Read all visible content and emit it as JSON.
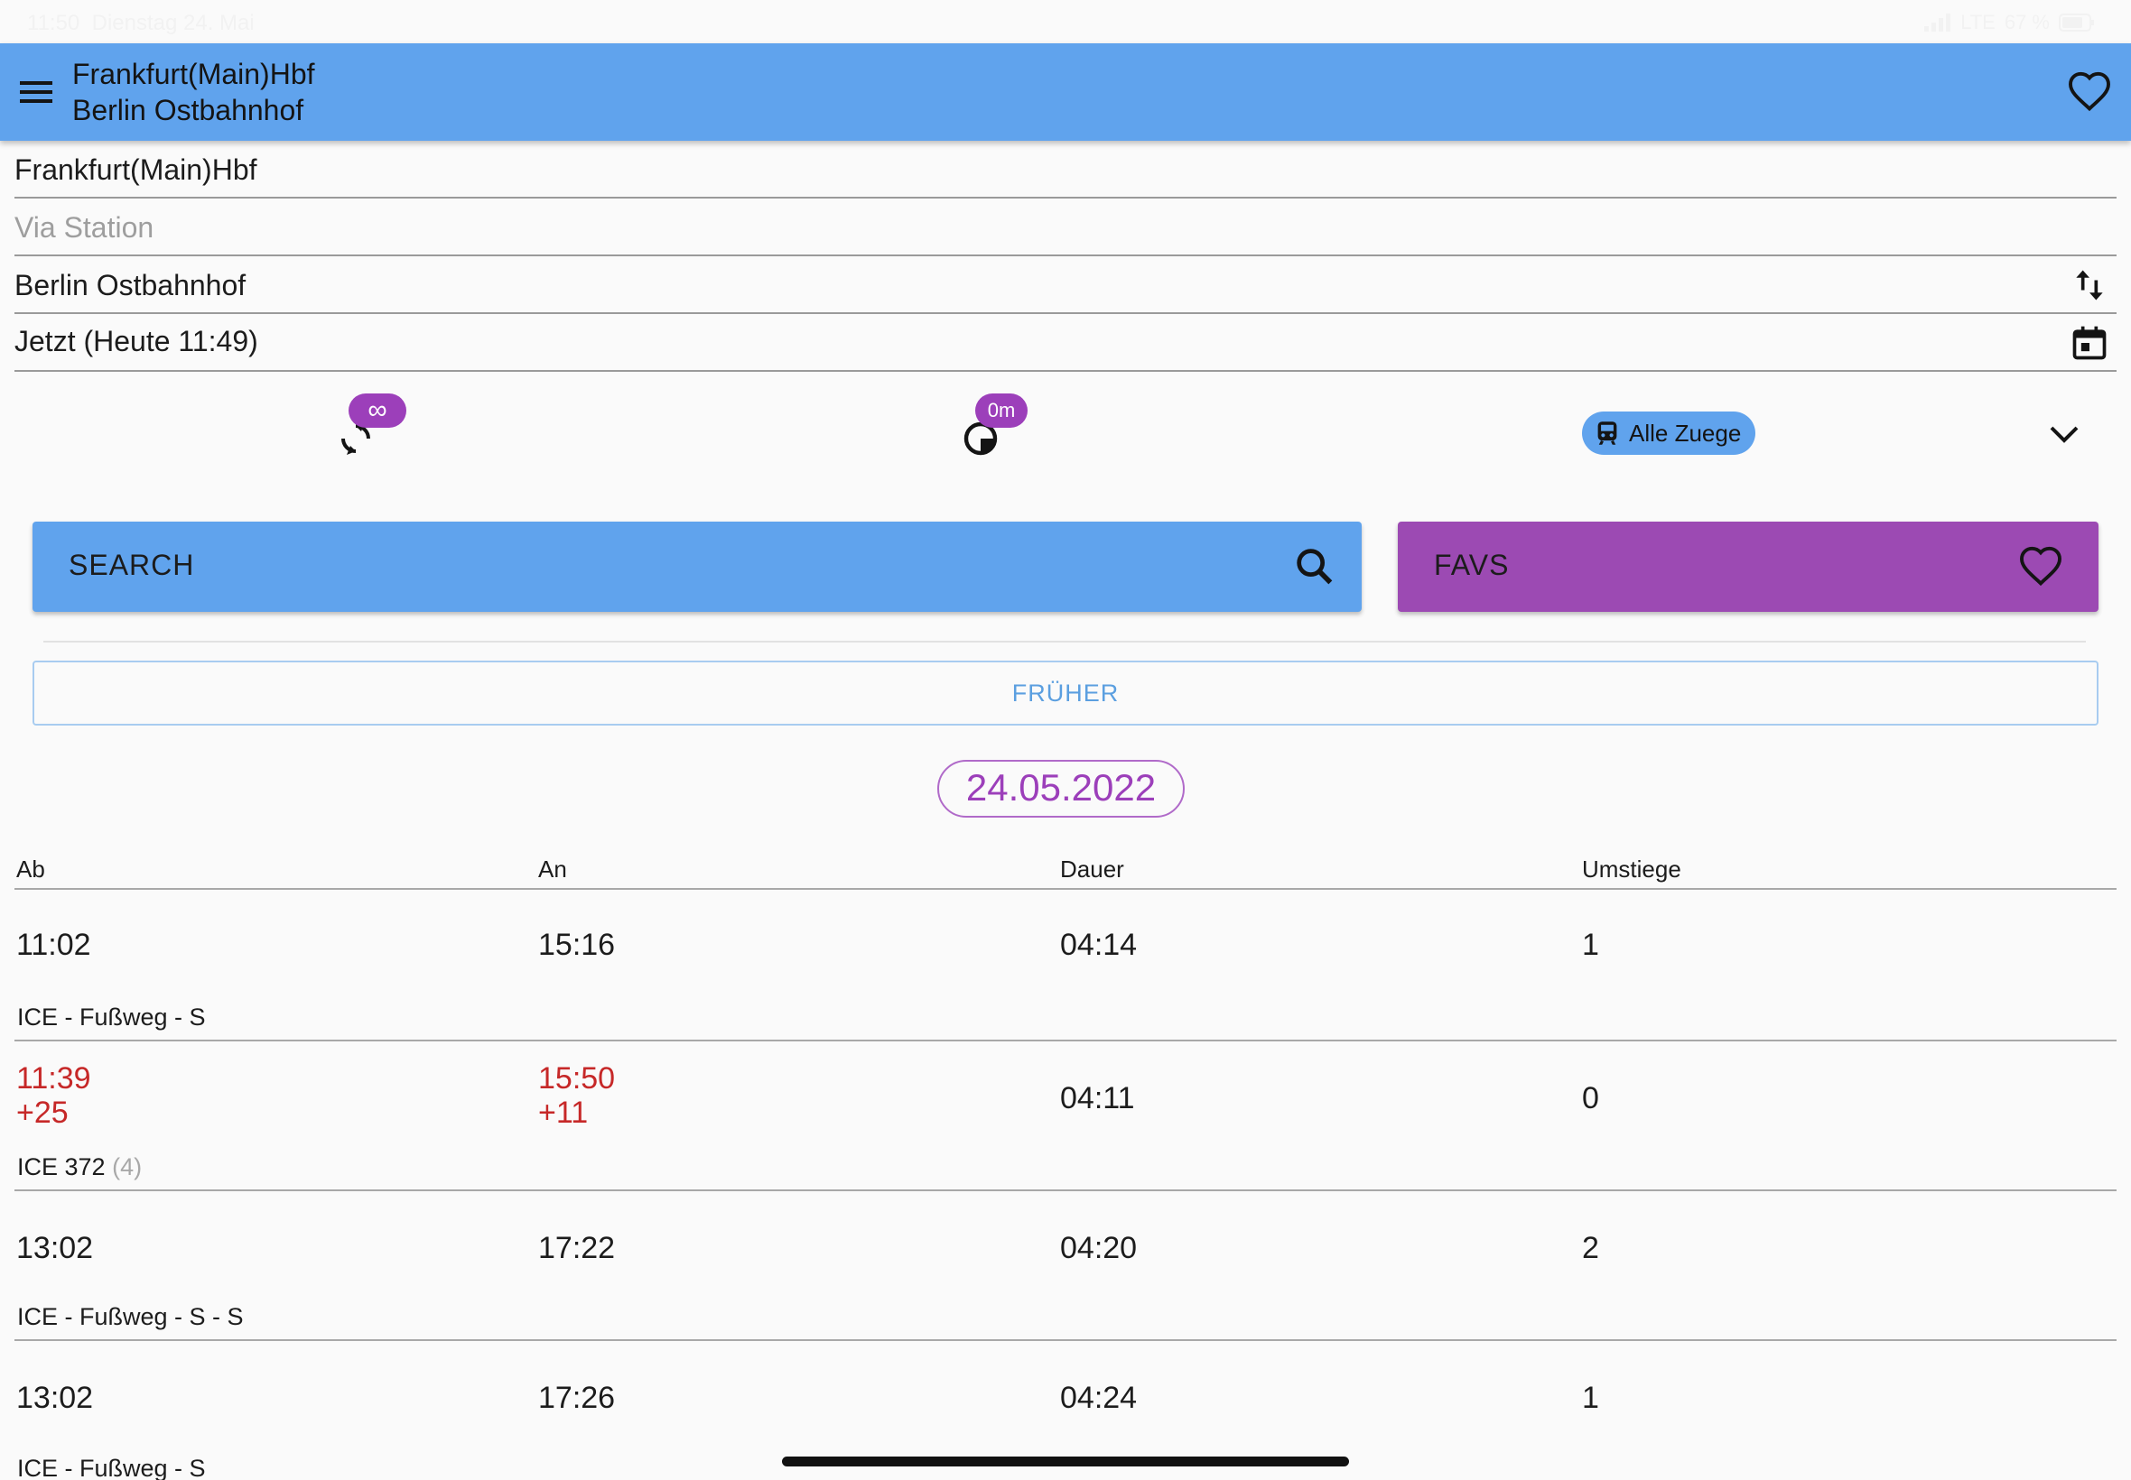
{
  "status_bar": {
    "time": "11:50",
    "date": "Dienstag 24. Mai",
    "network": "LTE",
    "battery": "67 %"
  },
  "app_bar": {
    "from_title": "Frankfurt(Main)Hbf",
    "to_title": "Berlin Ostbahnhof",
    "color": "#60a3ed"
  },
  "form": {
    "from_value": "Frankfurt(Main)Hbf",
    "via_placeholder": "Via Station",
    "to_value": "Berlin Ostbahnhof",
    "when_value": "Jetzt (Heute 11:49)"
  },
  "options": {
    "transfers_badge": "∞",
    "transfer_time_badge": "0m",
    "product_chip": "Alle Zuege"
  },
  "buttons": {
    "search_label": "SEARCH",
    "favs_label": "FAVS",
    "earlier_label": "FRÜHER",
    "search_color": "#60a3ed",
    "favs_color": "#9c4ab3"
  },
  "date_pill": "24.05.2022",
  "table": {
    "headers": [
      "Ab",
      "An",
      "Dauer",
      "Umstiege"
    ],
    "rows": [
      {
        "dep": "11:02",
        "arr": "15:16",
        "duration": "04:14",
        "transfers": "1",
        "products": "ICE - Fußweg - S"
      },
      {
        "dep": "11:39",
        "dep_delay": "+25",
        "arr": "15:50",
        "arr_delay": "+11",
        "duration": "04:11",
        "transfers": "0",
        "products": "ICE 372",
        "platform": "(4)"
      },
      {
        "dep": "13:02",
        "arr": "17:22",
        "duration": "04:20",
        "transfers": "2",
        "products": "ICE - Fußweg - S - S"
      },
      {
        "dep": "13:02",
        "arr": "17:26",
        "duration": "04:24",
        "transfers": "1",
        "products": "ICE - Fußweg - S"
      }
    ]
  },
  "delay_color": "#c62828",
  "accent_purple": "#9c3fba"
}
